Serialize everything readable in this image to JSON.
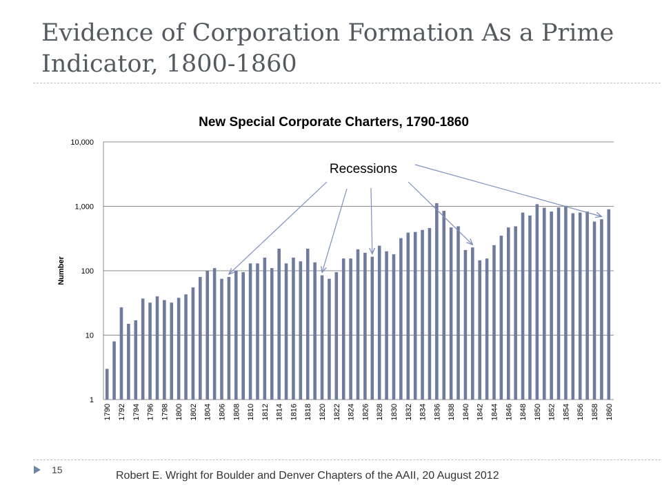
{
  "slide": {
    "title": "Evidence of Corporation Formation As a Prime Indicator, 1800-1860",
    "page_number": "15",
    "footer": "Robert E. Wright for Boulder and Denver Chapters of the AAII, 20 August 2012"
  },
  "colors": {
    "bar": "#6f7aa0",
    "arrow": "#7d8fbf",
    "grid": "#8c8c8c",
    "title": "#555a60"
  },
  "chart_data": {
    "type": "bar",
    "title": "New Special Corporate Charters, 1790-1860",
    "xlabel": "",
    "ylabel": "Number",
    "yscale": "log",
    "ylim": [
      1,
      10000
    ],
    "yticks": [
      "1",
      "10",
      "100",
      "1,000",
      "10,000"
    ],
    "grid": true,
    "x_tick_labels": [
      "1790",
      "1792",
      "1794",
      "1796",
      "1798",
      "1800",
      "1802",
      "1804",
      "1806",
      "1808",
      "1810",
      "1812",
      "1814",
      "1816",
      "1818",
      "1820",
      "1822",
      "1824",
      "1826",
      "1828",
      "1830",
      "1832",
      "1834",
      "1836",
      "1838",
      "1840",
      "1842",
      "1844",
      "1846",
      "1848",
      "1850",
      "1852",
      "1854",
      "1856",
      "1858",
      "1860"
    ],
    "categories": [
      1790,
      1791,
      1792,
      1793,
      1794,
      1795,
      1796,
      1797,
      1798,
      1799,
      1800,
      1801,
      1802,
      1803,
      1804,
      1805,
      1806,
      1807,
      1808,
      1809,
      1810,
      1811,
      1812,
      1813,
      1814,
      1815,
      1816,
      1817,
      1818,
      1819,
      1820,
      1821,
      1822,
      1823,
      1824,
      1825,
      1826,
      1827,
      1828,
      1829,
      1830,
      1831,
      1832,
      1833,
      1834,
      1835,
      1836,
      1837,
      1838,
      1839,
      1840,
      1841,
      1842,
      1843,
      1844,
      1845,
      1846,
      1847,
      1848,
      1849,
      1850,
      1851,
      1852,
      1853,
      1854,
      1855,
      1856,
      1857,
      1858,
      1859,
      1860
    ],
    "values": [
      3,
      8,
      27,
      15,
      17,
      37,
      32,
      40,
      35,
      32,
      38,
      43,
      55,
      80,
      100,
      110,
      75,
      80,
      100,
      95,
      130,
      130,
      160,
      110,
      220,
      130,
      160,
      140,
      220,
      135,
      85,
      75,
      95,
      155,
      155,
      215,
      190,
      165,
      245,
      200,
      180,
      320,
      390,
      400,
      430,
      460,
      1120,
      850,
      470,
      490,
      210,
      230,
      145,
      155,
      250,
      350,
      470,
      490,
      800,
      720,
      1080,
      950,
      830,
      960,
      1020,
      780,
      800,
      830,
      580,
      630,
      900
    ],
    "annotations": [
      {
        "text": "Recessions",
        "arrow_targets": [
          1807,
          1820,
          1827,
          1841,
          1859
        ]
      }
    ]
  }
}
